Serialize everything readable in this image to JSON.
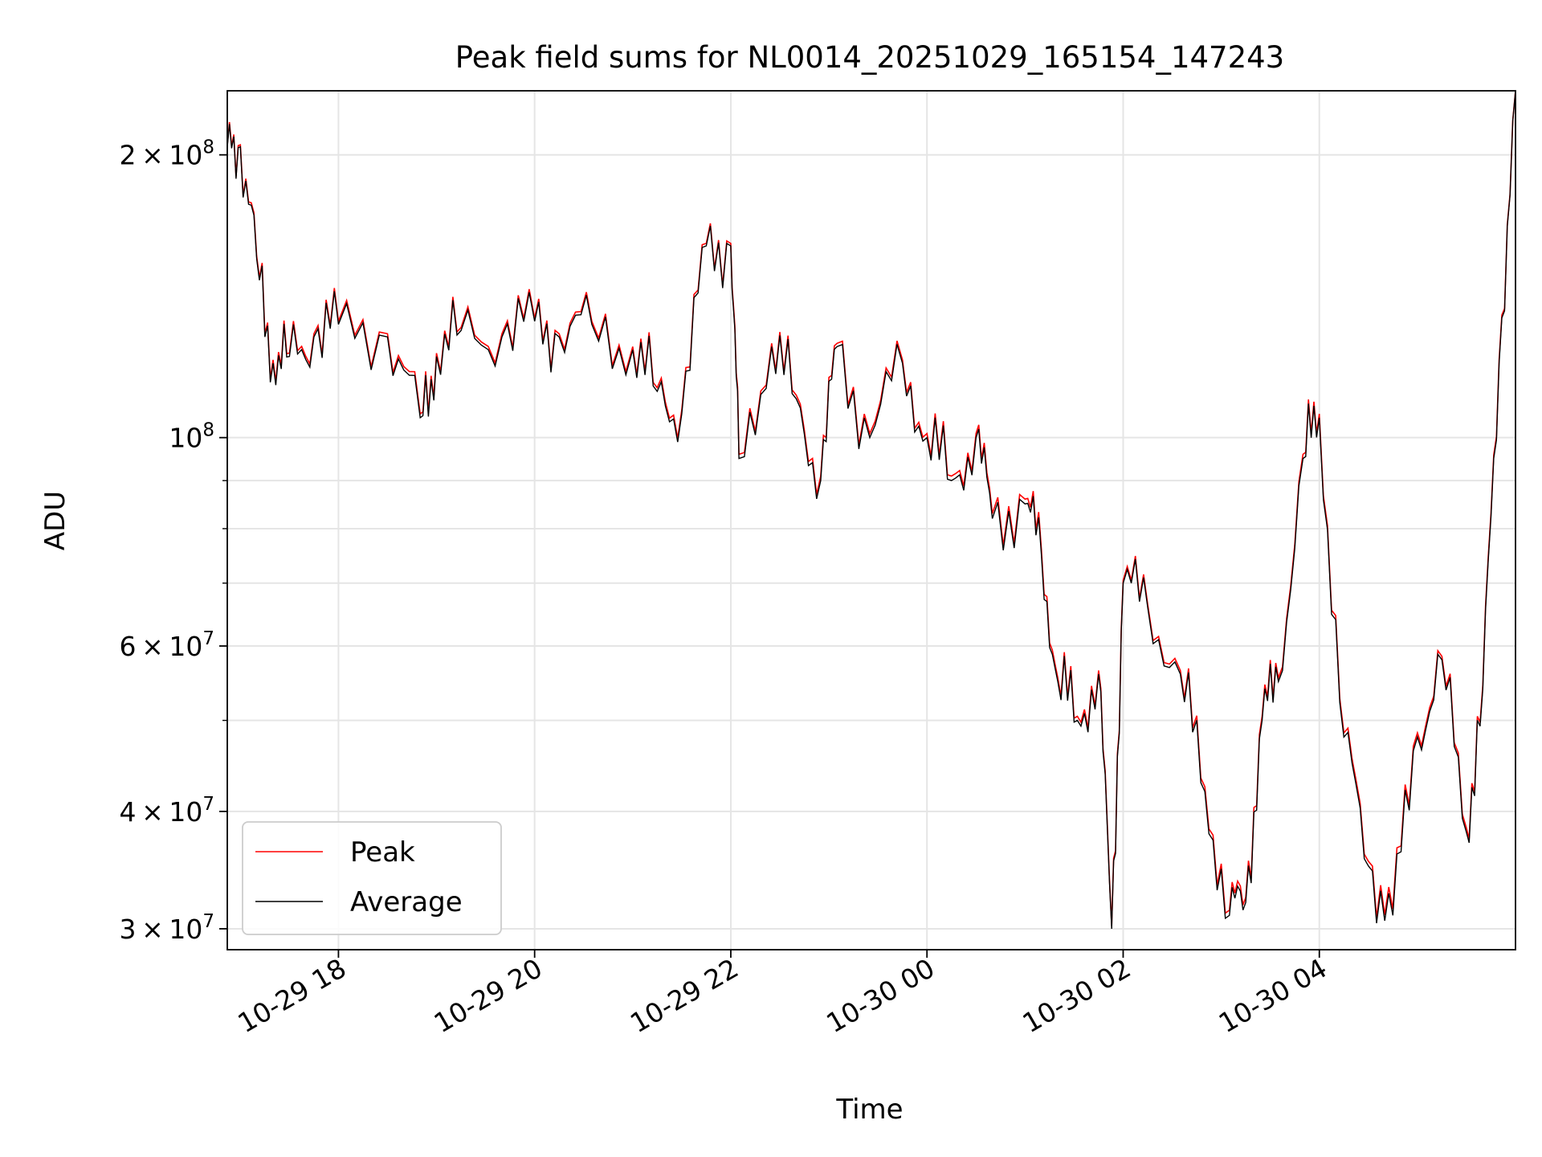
{
  "chart_data": {
    "type": "line",
    "title": "Peak field sums for NL0014_20251029_165154_147243",
    "xlabel": "Time",
    "ylabel": "ADU",
    "xscale": "time",
    "yscale": "log",
    "xlim": [
      "2025-10-29 16:52",
      "2025-10-30 06:00"
    ],
    "ylim": [
      28500000,
      234000000
    ],
    "grid": true,
    "legend_position": "lower left",
    "xticks": [
      {
        "t": "2025-10-29 18:00",
        "label": "10-29 18"
      },
      {
        "t": "2025-10-29 20:00",
        "label": "10-29 20"
      },
      {
        "t": "2025-10-29 22:00",
        "label": "10-29 22"
      },
      {
        "t": "2025-10-30 00:00",
        "label": "10-30 00"
      },
      {
        "t": "2025-10-30 02:00",
        "label": "10-30 02"
      },
      {
        "t": "2025-10-30 04:00",
        "label": "10-30 04"
      }
    ],
    "yticks": [
      {
        "v": 200000000,
        "mant": "2",
        "exp": "8"
      },
      {
        "v": 100000000,
        "mant": "",
        "exp": "8"
      },
      {
        "v": 60000000,
        "mant": "6",
        "exp": "7"
      },
      {
        "v": 40000000,
        "mant": "4",
        "exp": "7"
      },
      {
        "v": 30000000,
        "mant": "3",
        "exp": "7"
      }
    ],
    "minor_y": [
      50000000,
      70000000,
      80000000,
      90000000
    ],
    "series": [
      {
        "name": "Peak",
        "color": "#ff0000"
      },
      {
        "name": "Average",
        "color": "#000000"
      }
    ],
    "x": [
      "2025-10-29 16:52",
      "2025-10-29 17:00",
      "2025-10-29 17:10",
      "2025-10-29 17:20",
      "2025-10-29 17:30",
      "2025-10-29 17:45",
      "2025-10-29 18:00",
      "2025-10-29 18:30",
      "2025-10-29 18:50",
      "2025-10-29 19:00",
      "2025-10-29 19:15",
      "2025-10-29 19:40",
      "2025-10-29 20:00",
      "2025-10-29 20:15",
      "2025-10-29 20:35",
      "2025-10-29 21:00",
      "2025-10-29 21:15",
      "2025-10-29 21:30",
      "2025-10-29 21:45",
      "2025-10-29 22:00",
      "2025-10-29 22:05",
      "2025-10-29 22:25",
      "2025-10-29 22:40",
      "2025-10-29 22:55",
      "2025-10-29 23:05",
      "2025-10-29 23:25",
      "2025-10-29 23:45",
      "2025-10-30 00:00",
      "2025-10-30 00:15",
      "2025-10-30 00:30",
      "2025-10-30 00:40",
      "2025-10-30 01:00",
      "2025-10-30 01:10",
      "2025-10-30 01:20",
      "2025-10-30 01:32",
      "2025-10-30 01:45",
      "2025-10-30 01:53",
      "2025-10-30 02:00",
      "2025-10-30 02:15",
      "2025-10-30 02:35",
      "2025-10-30 02:50",
      "2025-10-30 03:05",
      "2025-10-30 03:15",
      "2025-10-30 03:25",
      "2025-10-30 03:35",
      "2025-10-30 03:50",
      "2025-10-30 04:00",
      "2025-10-30 04:15",
      "2025-10-30 04:30",
      "2025-10-30 04:45",
      "2025-10-30 05:00",
      "2025-10-30 05:15",
      "2025-10-30 05:30",
      "2025-10-30 05:40",
      "2025-10-30 05:50",
      "2025-10-30 06:00"
    ],
    "average": [
      204000000,
      204000000,
      155000000,
      120000000,
      122000000,
      128000000,
      132000000,
      128000000,
      105000000,
      122000000,
      130000000,
      128000000,
      133000000,
      128000000,
      132000000,
      124000000,
      112000000,
      106000000,
      160000000,
      160000000,
      95000000,
      125000000,
      110000000,
      90000000,
      125000000,
      100000000,
      120000000,
      100000000,
      90000000,
      100000000,
      82000000,
      85000000,
      75000000,
      55000000,
      50000000,
      56000000,
      30000000,
      70000000,
      66000000,
      56000000,
      42000000,
      31000000,
      32000000,
      50000000,
      55000000,
      95000000,
      105000000,
      48000000,
      35000000,
      31000000,
      48000000,
      58000000,
      38000000,
      54000000,
      120000000,
      234000000
    ],
    "peak": [
      205000000,
      205000000,
      156000000,
      121000000,
      123000000,
      129000000,
      133000000,
      129000000,
      106000000,
      123000000,
      131000000,
      129000000,
      134000000,
      129000000,
      133000000,
      125000000,
      113000000,
      107000000,
      161000000,
      161000000,
      96000000,
      126000000,
      111000000,
      91000000,
      126000000,
      101000000,
      121000000,
      101000000,
      91000000,
      101000000,
      83000000,
      86000000,
      76000000,
      55500000,
      50500000,
      56500000,
      30200000,
      70500000,
      66500000,
      56500000,
      42500000,
      31400000,
      32400000,
      50500000,
      55500000,
      96000000,
      106000000,
      48500000,
      35400000,
      31500000,
      48500000,
      58500000,
      38400000,
      54500000,
      121000000,
      234000000
    ]
  }
}
